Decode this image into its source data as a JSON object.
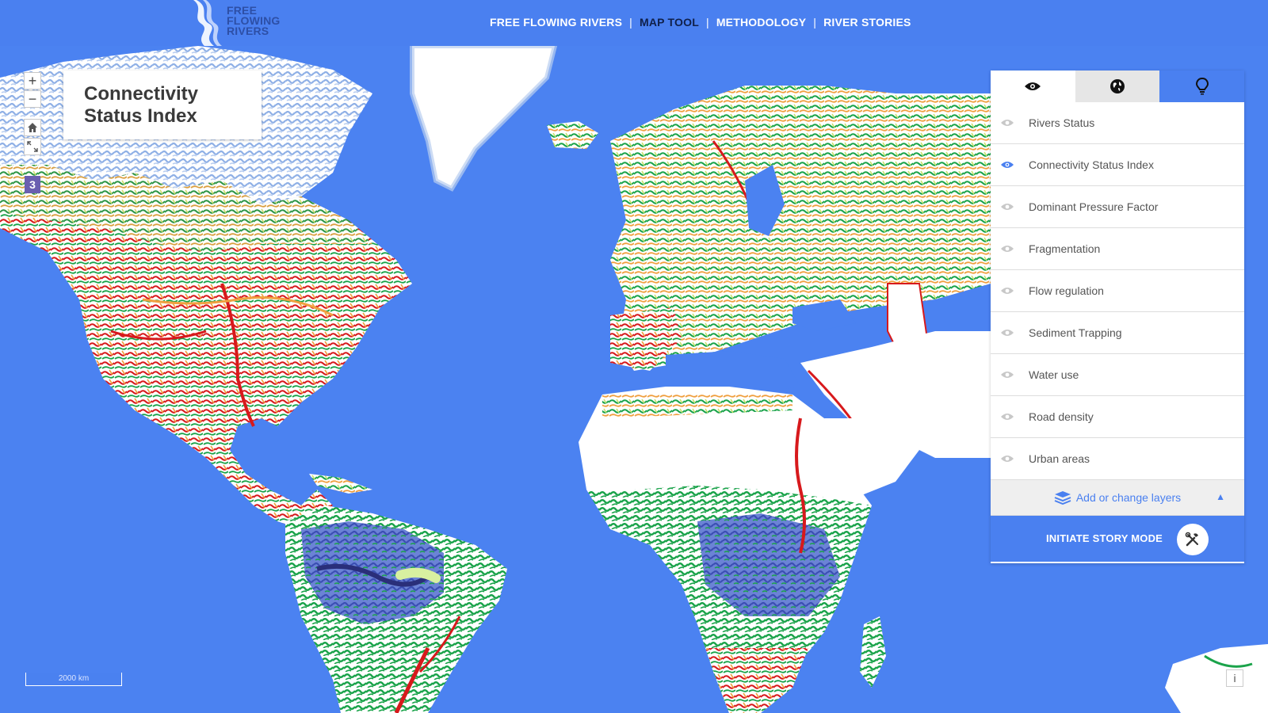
{
  "header": {
    "logo_lines": [
      "FREE",
      "FLOWING",
      "RIVERS"
    ],
    "nav": [
      {
        "label": "FREE FLOWING RIVERS",
        "active": false
      },
      {
        "label": "MAP TOOL",
        "active": true
      },
      {
        "label": "METHODOLOGY",
        "active": false
      },
      {
        "label": "RIVER STORIES",
        "active": false
      }
    ],
    "separator": "|"
  },
  "map_controls": {
    "zoom_in": "+",
    "zoom_out": "−",
    "zoom_level": "3",
    "home_icon": "home-icon",
    "fullscreen_icon": "expand-icon"
  },
  "title_card": {
    "title": "Connectivity Status Index"
  },
  "panel": {
    "tabs": [
      {
        "icon": "eye-icon",
        "active": true
      },
      {
        "icon": "globe-icon",
        "active": false
      },
      {
        "icon": "lightbulb-icon",
        "active": false
      }
    ],
    "layers": [
      {
        "label": "Rivers Status",
        "visible": false
      },
      {
        "label": "Connectivity Status Index",
        "visible": true
      },
      {
        "label": "Dominant Pressure Factor",
        "visible": false
      },
      {
        "label": "Fragmentation",
        "visible": false
      },
      {
        "label": "Flow regulation",
        "visible": false
      },
      {
        "label": "Sediment Trapping",
        "visible": false
      },
      {
        "label": "Water use",
        "visible": false
      },
      {
        "label": "Road density",
        "visible": false
      },
      {
        "label": "Urban areas",
        "visible": false
      }
    ],
    "add_layers_label": "Add or change layers",
    "add_layers_caret": "▲",
    "story_mode_label": "INITIATE STORY MODE"
  },
  "scale_bar": "2000 km",
  "info_button": "i",
  "colors": {
    "ocean": "#4b82f1",
    "header": "#4a80f0",
    "accent": "#4a80f0",
    "river_good": "#1aa34a",
    "river_medium": "#f0a040",
    "river_bad": "#d7191c",
    "river_light": "#c5e26c",
    "arctic": "#a9c3e8",
    "amazon_basin": "#3d4fb5"
  }
}
